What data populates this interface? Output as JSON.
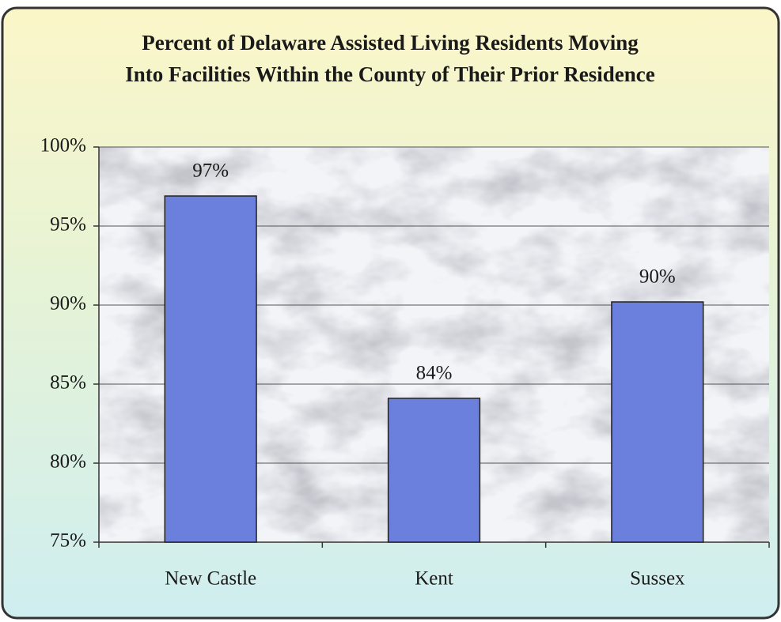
{
  "chart_data": {
    "type": "bar",
    "title": [
      "Percent of Delaware Assisted Living Residents Moving",
      "Into Facilities Within the County of Their Prior Residence"
    ],
    "categories": [
      "New Castle",
      "Kent",
      "Sussex"
    ],
    "values": [
      96.9,
      84.1,
      90.2
    ],
    "value_labels": [
      "97%",
      "84%",
      "90%"
    ],
    "color": "#6b7fdc",
    "ylim": [
      75,
      100
    ],
    "yticks": [
      {
        "value": 75,
        "label": "75%"
      },
      {
        "value": 80,
        "label": "80%"
      },
      {
        "value": 85,
        "label": "85%"
      },
      {
        "value": 90,
        "label": "90%"
      },
      {
        "value": 95,
        "label": "95%"
      },
      {
        "value": 100,
        "label": "100%"
      }
    ],
    "grid": true
  }
}
